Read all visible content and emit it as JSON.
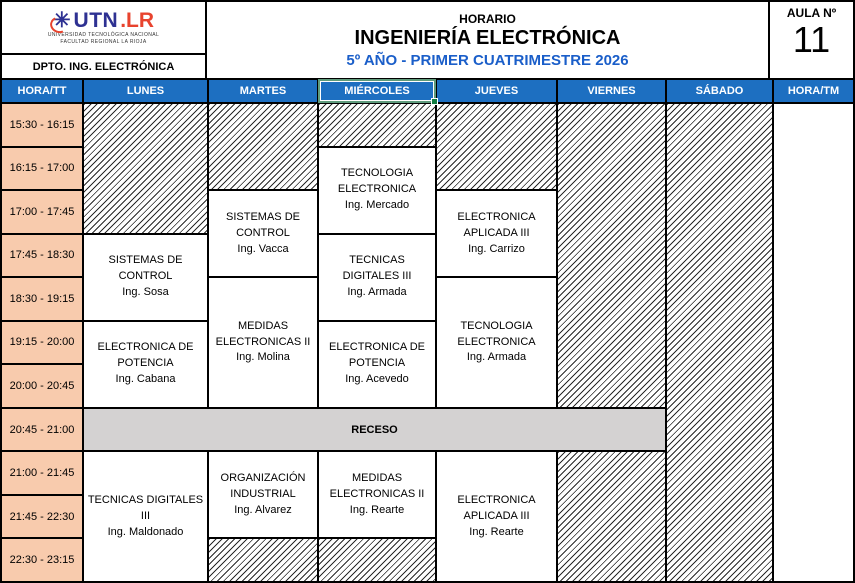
{
  "branding": {
    "logo_utn": "UTN",
    "logo_lr": ".LR",
    "logo_sub1": "UNIVERSIDAD TECNOLÓGICA NACIONAL",
    "logo_sub2": "FACULTAD REGIONAL LA RIOJA",
    "dept": "DPTO. ING. ELECTRÓNICA"
  },
  "header": {
    "kicker": "HORARIO",
    "title": "INGENIERÍA ELECTRÓNICA",
    "subtitle": "5º AÑO - PRIMER CUATRIMESTRE 2026",
    "room_label": "AULA Nº",
    "room_number": "11"
  },
  "table": {
    "corner_left": "HORA/TT",
    "corner_right": "HORA/TM",
    "days": [
      "LUNES",
      "MARTES",
      "MIÉRCOLES",
      "JUEVES",
      "VIERNES",
      "SÁBADO"
    ],
    "selected_day": "MIÉRCOLES",
    "time_slots": [
      "15:30 - 16:15",
      "16:15 - 17:00",
      "17:00 - 17:45",
      "17:45 - 18:30",
      "18:30 - 19:15",
      "19:15 - 20:00",
      "20:00 - 20:45",
      "20:45 - 21:00",
      "21:00 - 21:45",
      "21:45 - 22:30",
      "22:30 - 23:15"
    ],
    "receso": {
      "label": "RECESO",
      "row": 8,
      "col": 1,
      "colspan": 5
    },
    "cells": [
      {
        "day": "LUNES",
        "col": 1,
        "row": 1,
        "span": 3,
        "type": "empty"
      },
      {
        "day": "LUNES",
        "col": 1,
        "row": 4,
        "span": 2,
        "type": "course",
        "title": "SISTEMAS DE CONTROL",
        "teacher": "Ing. Sosa"
      },
      {
        "day": "LUNES",
        "col": 1,
        "row": 6,
        "span": 2,
        "type": "course",
        "title": "ELECTRONICA DE POTENCIA",
        "teacher": "Ing. Cabana"
      },
      {
        "day": "LUNES",
        "col": 1,
        "row": 9,
        "span": 3,
        "type": "course",
        "title": "TECNICAS DIGITALES III",
        "teacher": "Ing. Maldonado"
      },
      {
        "day": "MARTES",
        "col": 2,
        "row": 1,
        "span": 2,
        "type": "empty"
      },
      {
        "day": "MARTES",
        "col": 2,
        "row": 3,
        "span": 2,
        "type": "course",
        "title": "SISTEMAS DE CONTROL",
        "teacher": "Ing. Vacca"
      },
      {
        "day": "MARTES",
        "col": 2,
        "row": 5,
        "span": 3,
        "type": "course",
        "title": "MEDIDAS ELECTRONICAS II",
        "teacher": "Ing. Molina"
      },
      {
        "day": "MARTES",
        "col": 2,
        "row": 9,
        "span": 2,
        "type": "course",
        "title": "ORGANIZACIÓN INDUSTRIAL",
        "teacher": "Ing. Alvarez"
      },
      {
        "day": "MARTES",
        "col": 2,
        "row": 11,
        "span": 1,
        "type": "empty"
      },
      {
        "day": "MIÉRCOLES",
        "col": 3,
        "row": 1,
        "span": 1,
        "type": "empty"
      },
      {
        "day": "MIÉRCOLES",
        "col": 3,
        "row": 2,
        "span": 2,
        "type": "course",
        "title": "TECNOLOGIA ELECTRONICA",
        "teacher": "Ing. Mercado"
      },
      {
        "day": "MIÉRCOLES",
        "col": 3,
        "row": 4,
        "span": 2,
        "type": "course",
        "title": "TECNICAS DIGITALES III",
        "teacher": "Ing. Armada"
      },
      {
        "day": "MIÉRCOLES",
        "col": 3,
        "row": 6,
        "span": 2,
        "type": "course",
        "title": "ELECTRONICA DE POTENCIA",
        "teacher": "Ing. Acevedo"
      },
      {
        "day": "MIÉRCOLES",
        "col": 3,
        "row": 9,
        "span": 2,
        "type": "course",
        "title": "MEDIDAS ELECTRONICAS II",
        "teacher": "Ing. Rearte"
      },
      {
        "day": "MIÉRCOLES",
        "col": 3,
        "row": 11,
        "span": 1,
        "type": "empty"
      },
      {
        "day": "JUEVES",
        "col": 4,
        "row": 1,
        "span": 2,
        "type": "empty"
      },
      {
        "day": "JUEVES",
        "col": 4,
        "row": 3,
        "span": 2,
        "type": "course",
        "title": "ELECTRONICA APLICADA III",
        "teacher": "Ing. Carrizo"
      },
      {
        "day": "JUEVES",
        "col": 4,
        "row": 5,
        "span": 3,
        "type": "course",
        "title": "TECNOLOGIA ELECTRONICA",
        "teacher": "Ing. Armada"
      },
      {
        "day": "JUEVES",
        "col": 4,
        "row": 9,
        "span": 3,
        "type": "course",
        "title": "ELECTRONICA APLICADA III",
        "teacher": "Ing. Rearte"
      },
      {
        "day": "VIERNES",
        "col": 5,
        "row": 1,
        "span": 7,
        "type": "empty"
      },
      {
        "day": "VIERNES",
        "col": 5,
        "row": 9,
        "span": 3,
        "type": "empty"
      },
      {
        "day": "SÁBADO",
        "col": 6,
        "row": 1,
        "span": 11,
        "type": "empty"
      }
    ]
  },
  "colors": {
    "header_blue": "#1d6fc1",
    "time_peach": "#f8cbad",
    "receso_gray": "#d4d2d2",
    "subtitle_blue": "#1a5ec9",
    "brand_blue": "#2e3192",
    "brand_red": "#e8432e",
    "selection_green": "#107c41",
    "border_black": "#000000"
  }
}
